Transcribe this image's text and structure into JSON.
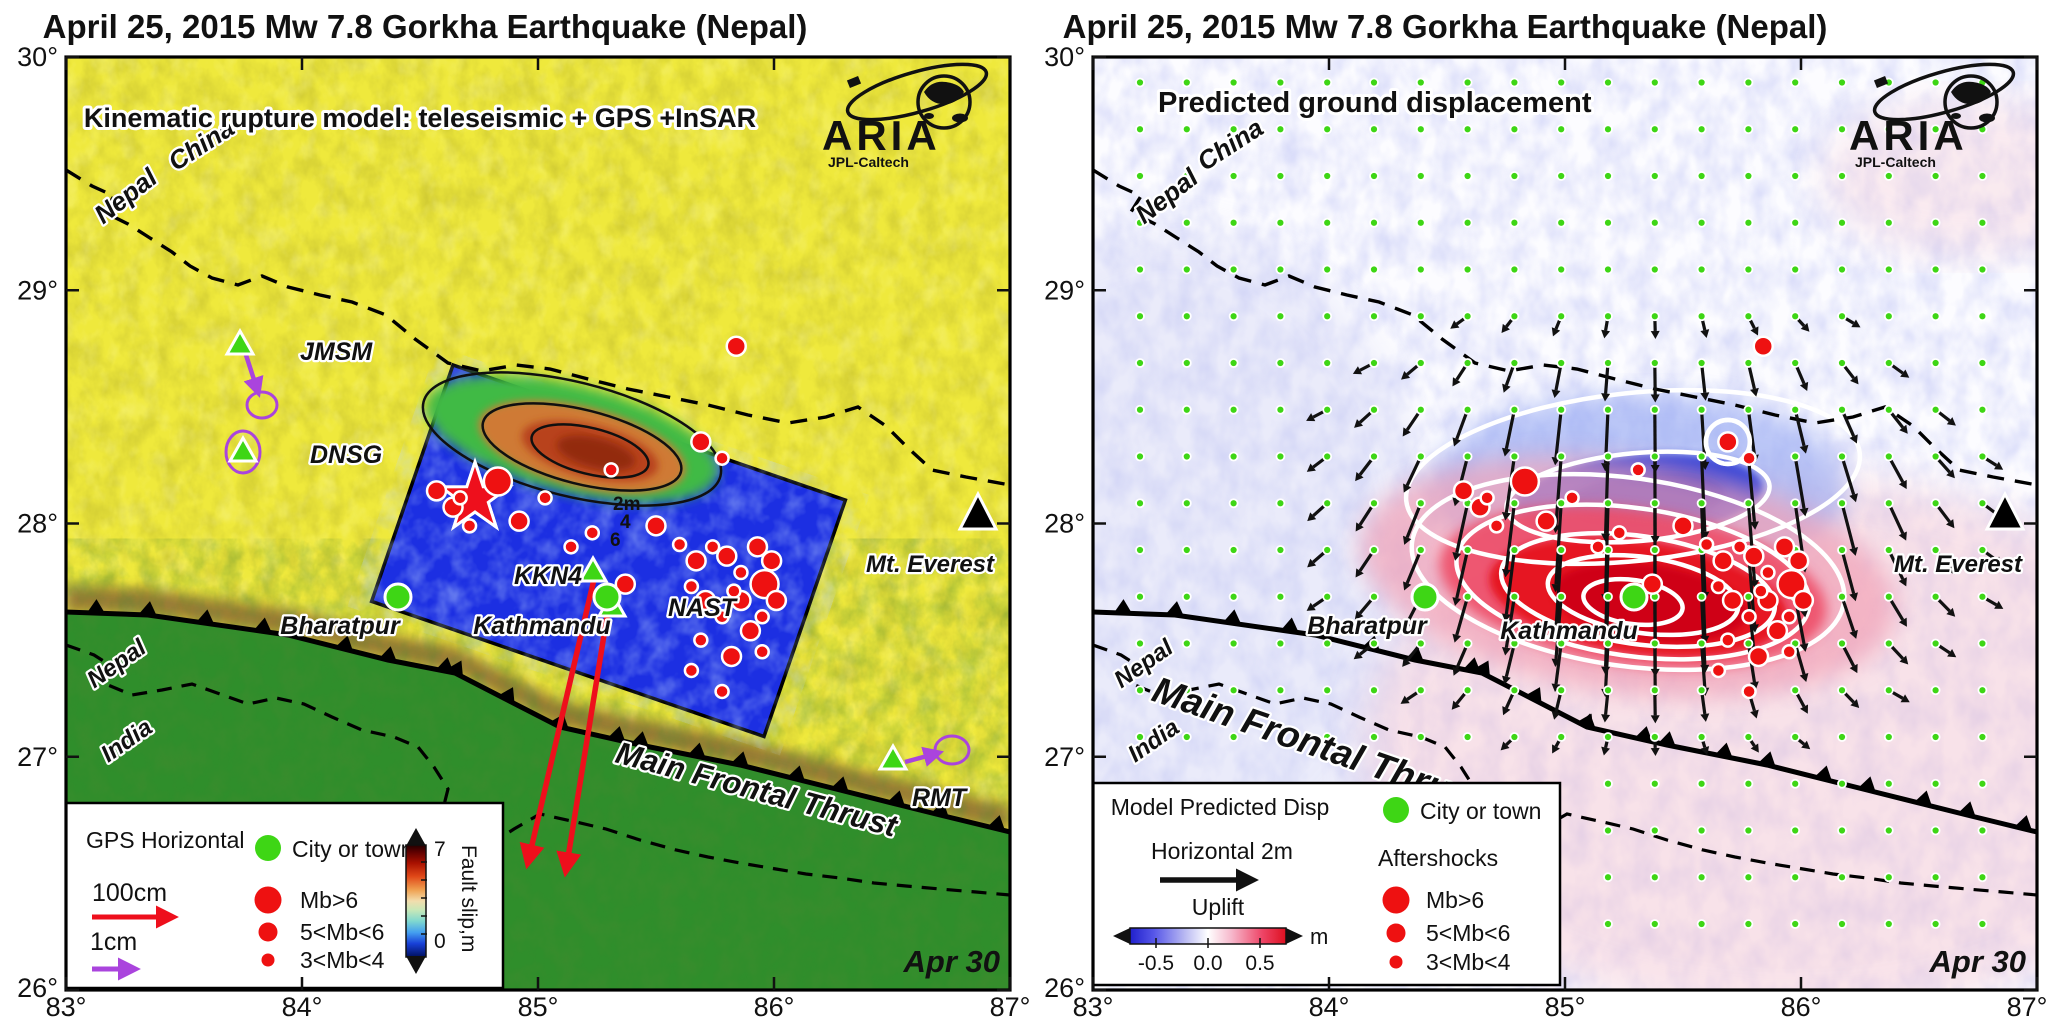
{
  "figure": {
    "title": "April 25, 2015 Mw 7.8 Gorkha Earthquake (Nepal)",
    "date_label": "Apr 30",
    "logo": {
      "name": "ARIA",
      "subtitle": "JPL-Caltech"
    }
  },
  "axes": {
    "lon_labels": [
      "83°",
      "84°",
      "85°",
      "86°",
      "87°"
    ],
    "lat_labels": [
      "30°",
      "29°",
      "28°",
      "27°",
      "26°"
    ]
  },
  "left_panel": {
    "subtitle": "Kinematic rupture model: teleseismic + GPS +InSAR",
    "slip_contour_labels": [
      "2m",
      "4",
      "6"
    ],
    "legend": {
      "gps_title": "GPS Horizontal",
      "scale_large": "100cm",
      "scale_small": "1cm",
      "city_label": "City or town",
      "mb_large": "Mb>6",
      "mb_medium": "5<Mb<6",
      "mb_small": "3<Mb<4",
      "colorbar_label": "Fault slip,m",
      "colorbar_max": "7",
      "colorbar_min": "0"
    }
  },
  "right_panel": {
    "subtitle": "Predicted ground displacement",
    "legend": {
      "title": "Model Predicted Disp",
      "horizontal_scale": "Horizontal 2m",
      "uplift_label": "Uplift",
      "unit": "m",
      "colorbar_ticks": [
        "-0.5",
        "0.0",
        "0.5"
      ],
      "city_label": "City or town",
      "aftershocks_title": "Aftershocks",
      "mb_large": "Mb>6",
      "mb_medium": "5<Mb<6",
      "mb_small": "3<Mb<4"
    }
  },
  "map_labels": {
    "china": "China",
    "nepal": "Nepal",
    "india": "India",
    "fault": "Main Frontal Thrust",
    "everest": "Mt. Everest"
  },
  "colors": {
    "aftershock_red": "#ee1111",
    "city_green": "#3ed615",
    "gps_purple": "#aa44dd",
    "gps_red": "#ee0f1c",
    "terrain_yellow": "#efe93c",
    "plains_green": "#2f8e2b",
    "rupture_blue": "#1c2fe2",
    "uplift_red": "#e61224",
    "subsidence_blue": "#2b3cd8"
  },
  "chart_data": {
    "type": "map",
    "region": {
      "lon_range": [
        83,
        87
      ],
      "lat_range": [
        26,
        30
      ]
    },
    "epicenter": {
      "lon": 84.73,
      "lat": 28.11,
      "symbol": "red-star"
    },
    "cities": [
      {
        "name": "Bharatpur",
        "lon": 84.41,
        "lat": 27.68
      },
      {
        "name": "Kathmandu",
        "lon": 85.29,
        "lat": 27.69
      }
    ],
    "peak": {
      "name": "Mt. Everest",
      "lon": 86.86,
      "lat": 28.04
    },
    "gps_stations": [
      {
        "id": "JMSM",
        "lon": 83.74,
        "lat": 28.77
      },
      {
        "id": "DNSG",
        "lon": 83.75,
        "lat": 28.31
      },
      {
        "id": "RMT",
        "lon": 86.5,
        "lat": 27.0
      },
      {
        "id": "KKN4",
        "lon": 85.23,
        "lat": 27.79
      },
      {
        "id": "NAST",
        "lon": 85.31,
        "lat": 27.64
      }
    ],
    "slip_contours_m": [
      2,
      4,
      6
    ],
    "colorbar_fault_slip": {
      "label": "Fault slip,m",
      "min": 0,
      "max": 7
    },
    "colorbar_uplift": {
      "label": "Uplift",
      "unit": "m",
      "ticks": [
        -0.5,
        0.0,
        0.5
      ]
    },
    "aftershocks": [
      {
        "lon": 84.83,
        "lat": 28.18,
        "size": "large"
      },
      {
        "lon": 85.96,
        "lat": 27.74,
        "size": "large"
      },
      {
        "lon": 84.64,
        "lat": 28.07,
        "size": "medium"
      },
      {
        "lon": 84.57,
        "lat": 28.14,
        "size": "medium"
      },
      {
        "lon": 84.71,
        "lat": 27.99,
        "size": "small"
      },
      {
        "lon": 84.67,
        "lat": 28.11,
        "size": "small"
      },
      {
        "lon": 85.03,
        "lat": 28.11,
        "size": "small"
      },
      {
        "lon": 84.92,
        "lat": 28.01,
        "size": "medium"
      },
      {
        "lon": 85.14,
        "lat": 27.9,
        "size": "small"
      },
      {
        "lon": 85.84,
        "lat": 28.76,
        "size": "medium"
      },
      {
        "lon": 85.69,
        "lat": 28.35,
        "size": "medium",
        "ring": true
      },
      {
        "lon": 85.78,
        "lat": 28.28,
        "size": "small"
      },
      {
        "lon": 85.23,
        "lat": 27.96,
        "size": "small"
      },
      {
        "lon": 85.31,
        "lat": 28.23,
        "size": "small"
      },
      {
        "lon": 85.5,
        "lat": 27.99,
        "size": "medium"
      },
      {
        "lon": 85.37,
        "lat": 27.74,
        "size": "medium"
      },
      {
        "lon": 85.6,
        "lat": 27.91,
        "size": "small"
      },
      {
        "lon": 85.67,
        "lat": 27.84,
        "size": "medium"
      },
      {
        "lon": 85.74,
        "lat": 27.9,
        "size": "small"
      },
      {
        "lon": 85.8,
        "lat": 27.86,
        "size": "medium"
      },
      {
        "lon": 85.86,
        "lat": 27.79,
        "size": "small"
      },
      {
        "lon": 85.93,
        "lat": 27.9,
        "size": "medium"
      },
      {
        "lon": 85.99,
        "lat": 27.84,
        "size": "medium"
      },
      {
        "lon": 85.65,
        "lat": 27.73,
        "size": "small"
      },
      {
        "lon": 85.71,
        "lat": 27.67,
        "size": "medium"
      },
      {
        "lon": 85.78,
        "lat": 27.6,
        "size": "small"
      },
      {
        "lon": 85.86,
        "lat": 27.67,
        "size": "medium"
      },
      {
        "lon": 85.95,
        "lat": 27.6,
        "size": "small"
      },
      {
        "lon": 86.01,
        "lat": 27.67,
        "size": "medium"
      },
      {
        "lon": 85.69,
        "lat": 27.5,
        "size": "small"
      },
      {
        "lon": 85.82,
        "lat": 27.43,
        "size": "medium"
      },
      {
        "lon": 85.95,
        "lat": 27.45,
        "size": "small"
      },
      {
        "lon": 85.65,
        "lat": 27.37,
        "size": "small"
      },
      {
        "lon": 85.78,
        "lat": 27.28,
        "size": "small"
      },
      {
        "lon": 85.9,
        "lat": 27.54,
        "size": "medium"
      },
      {
        "lon": 85.83,
        "lat": 27.71,
        "size": "small"
      }
    ]
  }
}
